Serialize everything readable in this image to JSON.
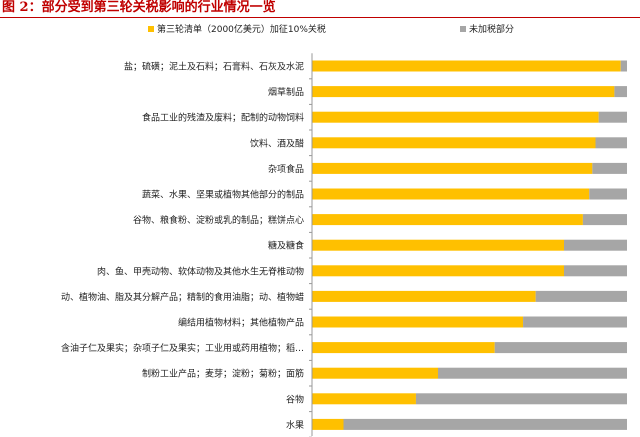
{
  "title": "图 2：部分受到第三轮关税影响的行业情况一览",
  "colors": {
    "title": "#C00000",
    "affected": "#FFC000",
    "unaffected": "#A6A6A6",
    "axis": "#999999"
  },
  "chart_data": {
    "type": "bar",
    "orientation": "horizontal",
    "stacked": true,
    "normalized_to_100": true,
    "categories": [
      "盐；硫磺；泥土及石料；石膏料、石灰及水泥",
      "烟草制品",
      "食品工业的残渣及废料；配制的动物饲料",
      "饮料、酒及醋",
      "杂项食品",
      "蔬菜、水果、坚果或植物其他部分的制品",
      "谷物、粮食粉、淀粉或乳的制品；糕饼点心",
      "糖及糖食",
      "肉、鱼、甲壳动物、软体动物及其他水生无脊椎动物",
      "动、植物油、脂及其分解产品；精制的食用油脂；动、植物蜡",
      "编结用植物材料；其他植物产品",
      "含油子仁及果实；杂项子仁及果实；工业用或药用植物；稻…",
      "制粉工业产品；麦芽；淀粉；菊粉；面筋",
      "谷物",
      "水果"
    ],
    "series": [
      {
        "name": "第三轮清单（2000亿美元）加征10%关税",
        "values": [
          98,
          96,
          91,
          90,
          89,
          88,
          86,
          80,
          80,
          71,
          67,
          58,
          40,
          33,
          10
        ]
      },
      {
        "name": "未加税部分",
        "values": [
          2,
          4,
          9,
          10,
          11,
          12,
          14,
          20,
          20,
          29,
          33,
          42,
          60,
          67,
          90
        ]
      }
    ],
    "xlim": [
      0,
      100
    ],
    "legend": "top"
  }
}
